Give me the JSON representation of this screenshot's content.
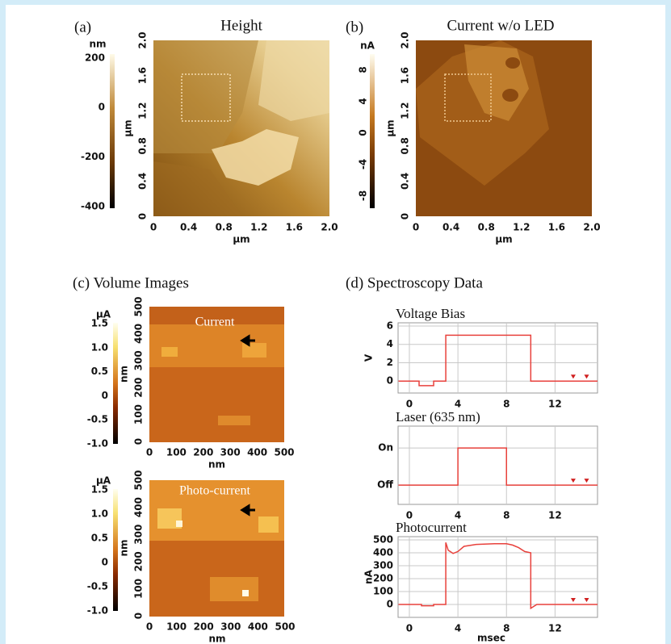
{
  "headings": [
    "(c) Volume Images",
    "(d) Spectroscopy Data"
  ],
  "chart_data": [
    {
      "type": "image",
      "panel_label": "(a)",
      "title": "Height",
      "xlabel": "µm",
      "ylabel": "µm",
      "xlim": [
        0,
        2
      ],
      "ylim": [
        0,
        2
      ],
      "xticks": [
        0,
        0.4,
        0.8,
        1.2,
        1.6,
        {
          "value": 2,
          "label": "2.0"
        }
      ],
      "yticks": [
        0,
        0.4,
        0.8,
        1.2,
        1.6,
        {
          "value": 2,
          "label": "2.0"
        }
      ],
      "colorbar_label": "nm",
      "clim": [
        -407,
        216
      ],
      "cticks": [
        200,
        0,
        -200,
        -400
      ]
    },
    {
      "type": "image",
      "panel_label": "(b)",
      "title": "Current w/o LED",
      "xlabel": "µm",
      "ylabel": "µm",
      "xlim": [
        0,
        2
      ],
      "ylim": [
        0,
        2
      ],
      "xticks": [
        0,
        0.4,
        0.8,
        1.2,
        1.6,
        {
          "value": 2,
          "label": "2.0"
        }
      ],
      "yticks": [
        0,
        0.4,
        0.8,
        1.2,
        1.6,
        {
          "value": 2,
          "label": "2.0"
        }
      ],
      "colorbar_label": "nA",
      "clim": [
        -9.6,
        10
      ],
      "cticks": [
        8,
        4,
        0,
        -4,
        -8
      ]
    },
    {
      "type": "image",
      "title": "Current",
      "xlabel": "nm",
      "ylabel": "nm",
      "xlim": [
        0,
        500
      ],
      "ylim": [
        0,
        500
      ],
      "xticks": [
        0,
        100,
        200,
        300,
        400,
        500
      ],
      "yticks": [
        0,
        100,
        200,
        300,
        400,
        500
      ],
      "colorbar_label": "µA",
      "clim": [
        -1,
        1.52
      ],
      "cticks": [
        1.5,
        {
          "value": 1,
          "label": "1.0"
        },
        0.5,
        0,
        -0.5,
        {
          "value": -1,
          "label": "-1.0"
        }
      ]
    },
    {
      "type": "image",
      "title": "Photo-current",
      "xlabel": "nm",
      "ylabel": "nm",
      "xlim": [
        0,
        500
      ],
      "ylim": [
        0,
        500
      ],
      "xticks": [
        0,
        100,
        200,
        300,
        400,
        500
      ],
      "yticks": [
        0,
        100,
        200,
        300,
        400,
        500
      ],
      "colorbar_label": "µA",
      "clim": [
        -1,
        1.52
      ],
      "cticks": [
        1.5,
        {
          "value": 1,
          "label": "1.0"
        },
        0.5,
        0,
        -0.5,
        {
          "value": -1,
          "label": "-1.0"
        }
      ]
    },
    {
      "type": "line",
      "title": "Voltage Bias",
      "ylabel": "V",
      "color": "#e8413c",
      "x": [
        -0.9,
        0.8,
        0.8,
        2,
        2,
        3,
        3,
        10,
        10,
        15.5
      ],
      "values": [
        0,
        0,
        -0.5,
        -0.5,
        0,
        0,
        5,
        5,
        0,
        0
      ],
      "xlim": [
        -0.93,
        15.5
      ],
      "ylim": [
        -1.3,
        6.35
      ],
      "xticks": [
        0,
        4,
        8,
        12
      ],
      "yticks": [
        0,
        2,
        4,
        6
      ]
    },
    {
      "type": "line",
      "title": "Laser (635 nm)",
      "color": "#e8413c",
      "x": [
        -0.9,
        4,
        4,
        8,
        8,
        15.5
      ],
      "values": [
        0,
        0,
        1,
        1,
        0,
        0
      ],
      "xlim": [
        -0.93,
        15.5
      ],
      "ylim": [
        -0.52,
        1.59
      ],
      "xticks": [
        0,
        4,
        8,
        12
      ],
      "yticks": [
        {
          "value": 1,
          "label": "On"
        },
        {
          "value": 0,
          "label": "Off"
        }
      ]
    },
    {
      "type": "line",
      "title": "Photocurrent",
      "ylabel": "nA",
      "xlabel": "msec",
      "color": "#e8413c",
      "x": [
        -0.9,
        1,
        1,
        2,
        2,
        3,
        3,
        3.2,
        3.6,
        4,
        4.5,
        5.5,
        7,
        8,
        8.5,
        9,
        9.5,
        10,
        10,
        10.5,
        15.5
      ],
      "values": [
        0,
        0,
        -10,
        -10,
        0,
        0,
        480,
        420,
        395,
        410,
        450,
        465,
        470,
        470,
        460,
        440,
        410,
        400,
        -30,
        0,
        0
      ],
      "xlim": [
        -0.93,
        15.5
      ],
      "ylim": [
        -100,
        525
      ],
      "xticks": [
        0,
        4,
        8,
        12
      ],
      "yticks": [
        0,
        100,
        200,
        300,
        400,
        500
      ]
    }
  ]
}
